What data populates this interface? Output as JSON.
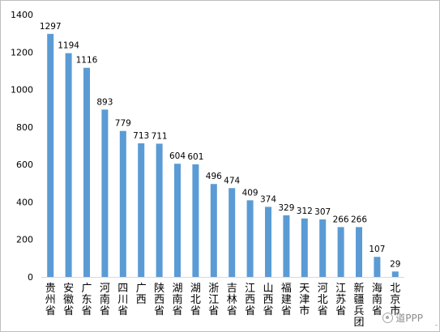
{
  "chart_data": {
    "type": "bar",
    "title": "",
    "xlabel": "",
    "ylabel": "",
    "categories": [
      "贵州省",
      "安徽省",
      "广东省",
      "河南省",
      "四川省",
      "广西",
      "陕西省",
      "湖南省",
      "湖北省",
      "浙江省",
      "吉林省",
      "江西省",
      "山西省",
      "福建省",
      "天津市",
      "河北省",
      "江苏省",
      "新疆兵团",
      "海南省",
      "北京市"
    ],
    "values": [
      1297,
      1194,
      1116,
      893,
      779,
      713,
      711,
      604,
      601,
      496,
      474,
      409,
      374,
      329,
      312,
      307,
      266,
      266,
      107,
      29
    ],
    "ylim": [
      0,
      1400
    ],
    "yticks": [
      0,
      200,
      400,
      600,
      800,
      1000,
      1200,
      1400
    ],
    "grid": false,
    "legend": "none",
    "data_labels": true,
    "colors": {
      "bar": "#5b9bd5",
      "axis": "#d9d9d9",
      "text": "#000000"
    }
  },
  "watermark": {
    "text": "道PPP",
    "icon": "wechat-logo-icon"
  },
  "edge_mark": "-"
}
